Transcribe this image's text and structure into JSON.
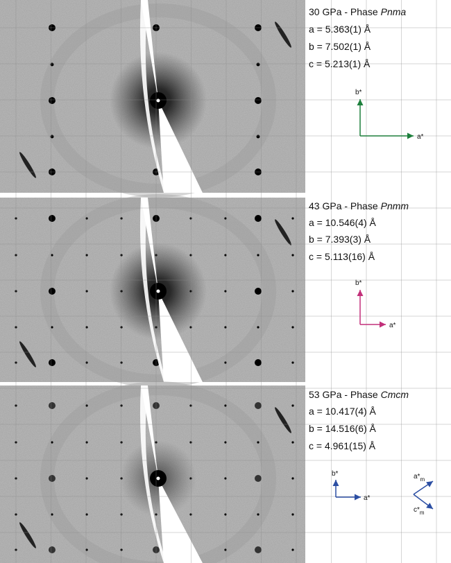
{
  "panels": [
    {
      "title": "30 GPa - Phase",
      "phase": "Pnma",
      "lattice": [
        "a = 5.363(1) Å",
        "b = 7.502(1) Å",
        "c = 5.213(1) Å"
      ],
      "axes": {
        "b": "b*",
        "a": "a*"
      }
    },
    {
      "title": "43 GPa - Phase",
      "phase": "Pnmm",
      "lattice": [
        "a = 10.546(4) Å",
        "b = 7.393(3) Å",
        "c = 5.113(16) Å"
      ],
      "axes": {
        "b": "b*",
        "a": "a*"
      }
    },
    {
      "title": "53 GPa - Phase",
      "phase": "Cmcm",
      "lattice": [
        "a = 10.417(4) Å",
        "b = 14.516(6) Å",
        "c = 4.961(15) Å"
      ],
      "axes": {
        "b": "b*",
        "a": "a*"
      },
      "monoclinic_axes": {
        "a": "a*",
        "c": "c*",
        "subscript": "m"
      }
    }
  ]
}
